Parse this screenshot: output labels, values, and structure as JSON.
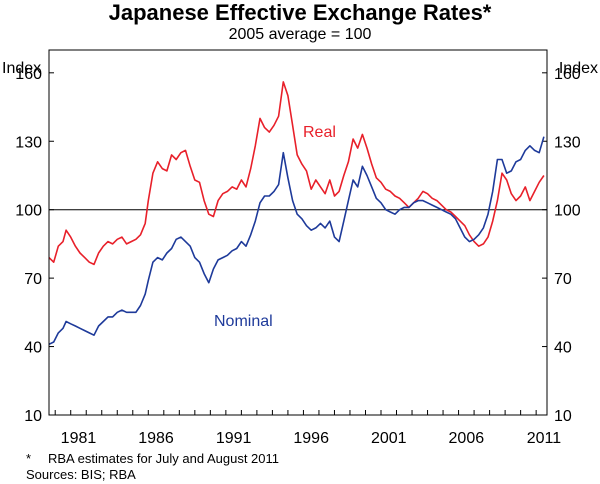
{
  "chart_data": {
    "type": "line",
    "title": "Japanese Effective Exchange Rates*",
    "subtitle": "2005 average = 100",
    "ylabel_left": "Index",
    "ylabel_right": "Index",
    "ylim": [
      10,
      170
    ],
    "yticks": [
      10,
      40,
      70,
      100,
      130,
      160
    ],
    "xlim": [
      1979.6,
      2011.7
    ],
    "xticks": [
      1981,
      1986,
      1991,
      1996,
      2001,
      2006,
      2011
    ],
    "reference_line": 100,
    "grid": false,
    "series": [
      {
        "name": "Real",
        "color": "#e8202a",
        "label_position": "top-center",
        "x": [
          1979.6,
          1979.9,
          1980.2,
          1980.5,
          1980.7,
          1981.0,
          1981.3,
          1981.6,
          1981.9,
          1982.2,
          1982.5,
          1982.8,
          1983.1,
          1983.4,
          1983.7,
          1984.0,
          1984.3,
          1984.6,
          1984.9,
          1985.2,
          1985.5,
          1985.8,
          1986.0,
          1986.3,
          1986.6,
          1986.9,
          1987.2,
          1987.5,
          1987.8,
          1988.1,
          1988.4,
          1988.7,
          1989.0,
          1989.3,
          1989.6,
          1989.9,
          1990.2,
          1990.5,
          1990.8,
          1991.1,
          1991.4,
          1991.7,
          1992.0,
          1992.3,
          1992.6,
          1992.9,
          1993.2,
          1993.5,
          1993.8,
          1994.1,
          1994.4,
          1994.7,
          1995.0,
          1995.3,
          1995.6,
          1995.9,
          1996.2,
          1996.5,
          1996.8,
          1997.1,
          1997.4,
          1997.7,
          1998.0,
          1998.3,
          1998.6,
          1998.9,
          1999.2,
          1999.5,
          1999.8,
          2000.1,
          2000.4,
          2000.7,
          2001.0,
          2001.3,
          2001.6,
          2001.9,
          2002.2,
          2002.5,
          2002.8,
          2003.1,
          2003.4,
          2003.7,
          2004.0,
          2004.3,
          2004.6,
          2004.9,
          2005.2,
          2005.5,
          2005.8,
          2006.1,
          2006.4,
          2006.7,
          2007.0,
          2007.3,
          2007.6,
          2007.9,
          2008.2,
          2008.5,
          2008.8,
          2009.1,
          2009.4,
          2009.7,
          2010.0,
          2010.3,
          2010.6,
          2010.9,
          2011.2,
          2011.5
        ],
        "values": [
          79,
          77,
          84,
          86,
          91,
          88,
          84,
          81,
          79,
          77,
          76,
          81,
          84,
          86,
          85,
          87,
          88,
          85,
          86,
          87,
          89,
          94,
          104,
          116,
          121,
          118,
          117,
          124,
          122,
          125,
          126,
          119,
          113,
          112,
          104,
          98,
          97,
          104,
          107,
          108,
          110,
          109,
          113,
          110,
          118,
          128,
          140,
          136,
          134,
          137,
          141,
          156,
          150,
          137,
          124,
          120,
          117,
          109,
          113,
          110,
          107,
          113,
          106,
          108,
          115,
          121,
          131,
          127,
          133,
          127,
          120,
          114,
          112,
          109,
          108,
          106,
          105,
          103,
          101,
          103,
          105,
          108,
          107,
          105,
          104,
          102,
          100,
          99,
          97,
          95,
          93,
          89,
          86,
          84,
          85,
          88,
          95,
          104,
          116,
          113,
          107,
          104,
          106,
          110,
          104,
          108,
          112,
          115
        ]
      },
      {
        "name": "Nominal",
        "color": "#1e3a9a",
        "label_position": "middle-left",
        "x": [
          1979.6,
          1979.9,
          1980.2,
          1980.5,
          1980.7,
          1981.0,
          1981.3,
          1981.6,
          1981.9,
          1982.2,
          1982.5,
          1982.8,
          1983.1,
          1983.4,
          1983.7,
          1984.0,
          1984.3,
          1984.6,
          1984.9,
          1985.2,
          1985.5,
          1985.8,
          1986.0,
          1986.3,
          1986.6,
          1986.9,
          1987.2,
          1987.5,
          1987.8,
          1988.1,
          1988.4,
          1988.7,
          1989.0,
          1989.3,
          1989.6,
          1989.9,
          1990.2,
          1990.5,
          1990.8,
          1991.1,
          1991.4,
          1991.7,
          1992.0,
          1992.3,
          1992.6,
          1992.9,
          1993.2,
          1993.5,
          1993.8,
          1994.1,
          1994.4,
          1994.7,
          1995.0,
          1995.3,
          1995.6,
          1995.9,
          1996.2,
          1996.5,
          1996.8,
          1997.1,
          1997.4,
          1997.7,
          1998.0,
          1998.3,
          1998.6,
          1998.9,
          1999.2,
          1999.5,
          1999.8,
          2000.1,
          2000.4,
          2000.7,
          2001.0,
          2001.3,
          2001.6,
          2001.9,
          2002.2,
          2002.5,
          2002.8,
          2003.1,
          2003.4,
          2003.7,
          2004.0,
          2004.3,
          2004.6,
          2004.9,
          2005.2,
          2005.5,
          2005.8,
          2006.1,
          2006.4,
          2006.7,
          2007.0,
          2007.3,
          2007.6,
          2007.9,
          2008.2,
          2008.5,
          2008.8,
          2009.1,
          2009.4,
          2009.7,
          2010.0,
          2010.3,
          2010.6,
          2010.9,
          2011.2,
          2011.5
        ],
        "values": [
          41,
          42,
          46,
          48,
          51,
          50,
          49,
          48,
          47,
          46,
          45,
          49,
          51,
          53,
          53,
          55,
          56,
          55,
          55,
          55,
          58,
          63,
          69,
          77,
          79,
          78,
          81,
          83,
          87,
          88,
          86,
          84,
          79,
          77,
          72,
          68,
          74,
          78,
          79,
          80,
          82,
          83,
          86,
          84,
          89,
          95,
          103,
          106,
          106,
          108,
          111,
          125,
          114,
          104,
          98,
          96,
          93,
          91,
          92,
          94,
          92,
          95,
          88,
          86,
          95,
          104,
          113,
          110,
          119,
          115,
          110,
          105,
          103,
          100,
          99,
          98,
          100,
          101,
          101,
          103,
          104,
          104,
          103,
          102,
          101,
          100,
          99,
          98,
          96,
          92,
          88,
          86,
          87,
          89,
          92,
          98,
          108,
          122,
          122,
          116,
          117,
          121,
          122,
          126,
          128,
          126,
          125,
          132
        ]
      }
    ]
  },
  "footnote": {
    "marker": "*",
    "text": "RBA estimates for July and August 2011",
    "sources": "Sources: BIS; RBA"
  }
}
